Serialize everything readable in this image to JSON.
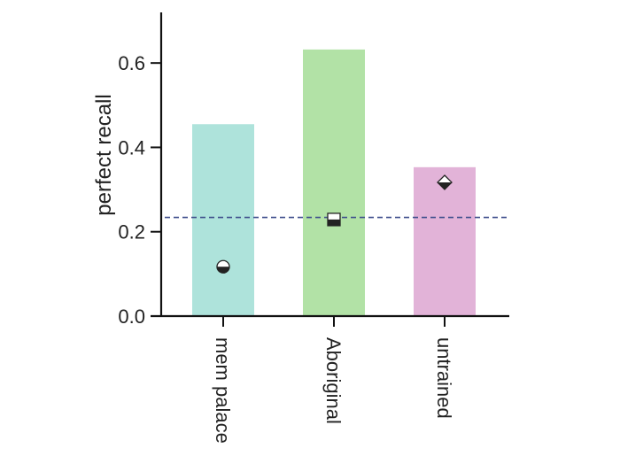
{
  "chart_data": {
    "type": "bar",
    "title": "",
    "xlabel": "",
    "ylabel": "perfect recall",
    "ylim": [
      0,
      0.72
    ],
    "yticks": [
      0.0,
      0.2,
      0.4,
      0.6
    ],
    "ytick_labels": [
      "0.0",
      "0.2",
      "0.4",
      "0.6"
    ],
    "categories": [
      "mem palace",
      "Aboriginal",
      "untrained"
    ],
    "values": [
      0.455,
      0.632,
      0.353
    ],
    "bar_colors": [
      "#aee3db",
      "#b2e2a6",
      "#e2b3d8"
    ],
    "markers": [
      {
        "category": "mem palace",
        "value": 0.117,
        "shape": "circle-half"
      },
      {
        "category": "Aboriginal",
        "value": 0.229,
        "shape": "square-half"
      },
      {
        "category": "untrained",
        "value": 0.317,
        "shape": "diamond-half"
      }
    ],
    "reference_line": {
      "value": 0.234,
      "style": "dashed",
      "color": "#3f4f8c"
    },
    "grid": false,
    "legend": "none",
    "x_label_rotation": "vertical",
    "marker_color": "#222222",
    "axis_color": "#111111"
  }
}
